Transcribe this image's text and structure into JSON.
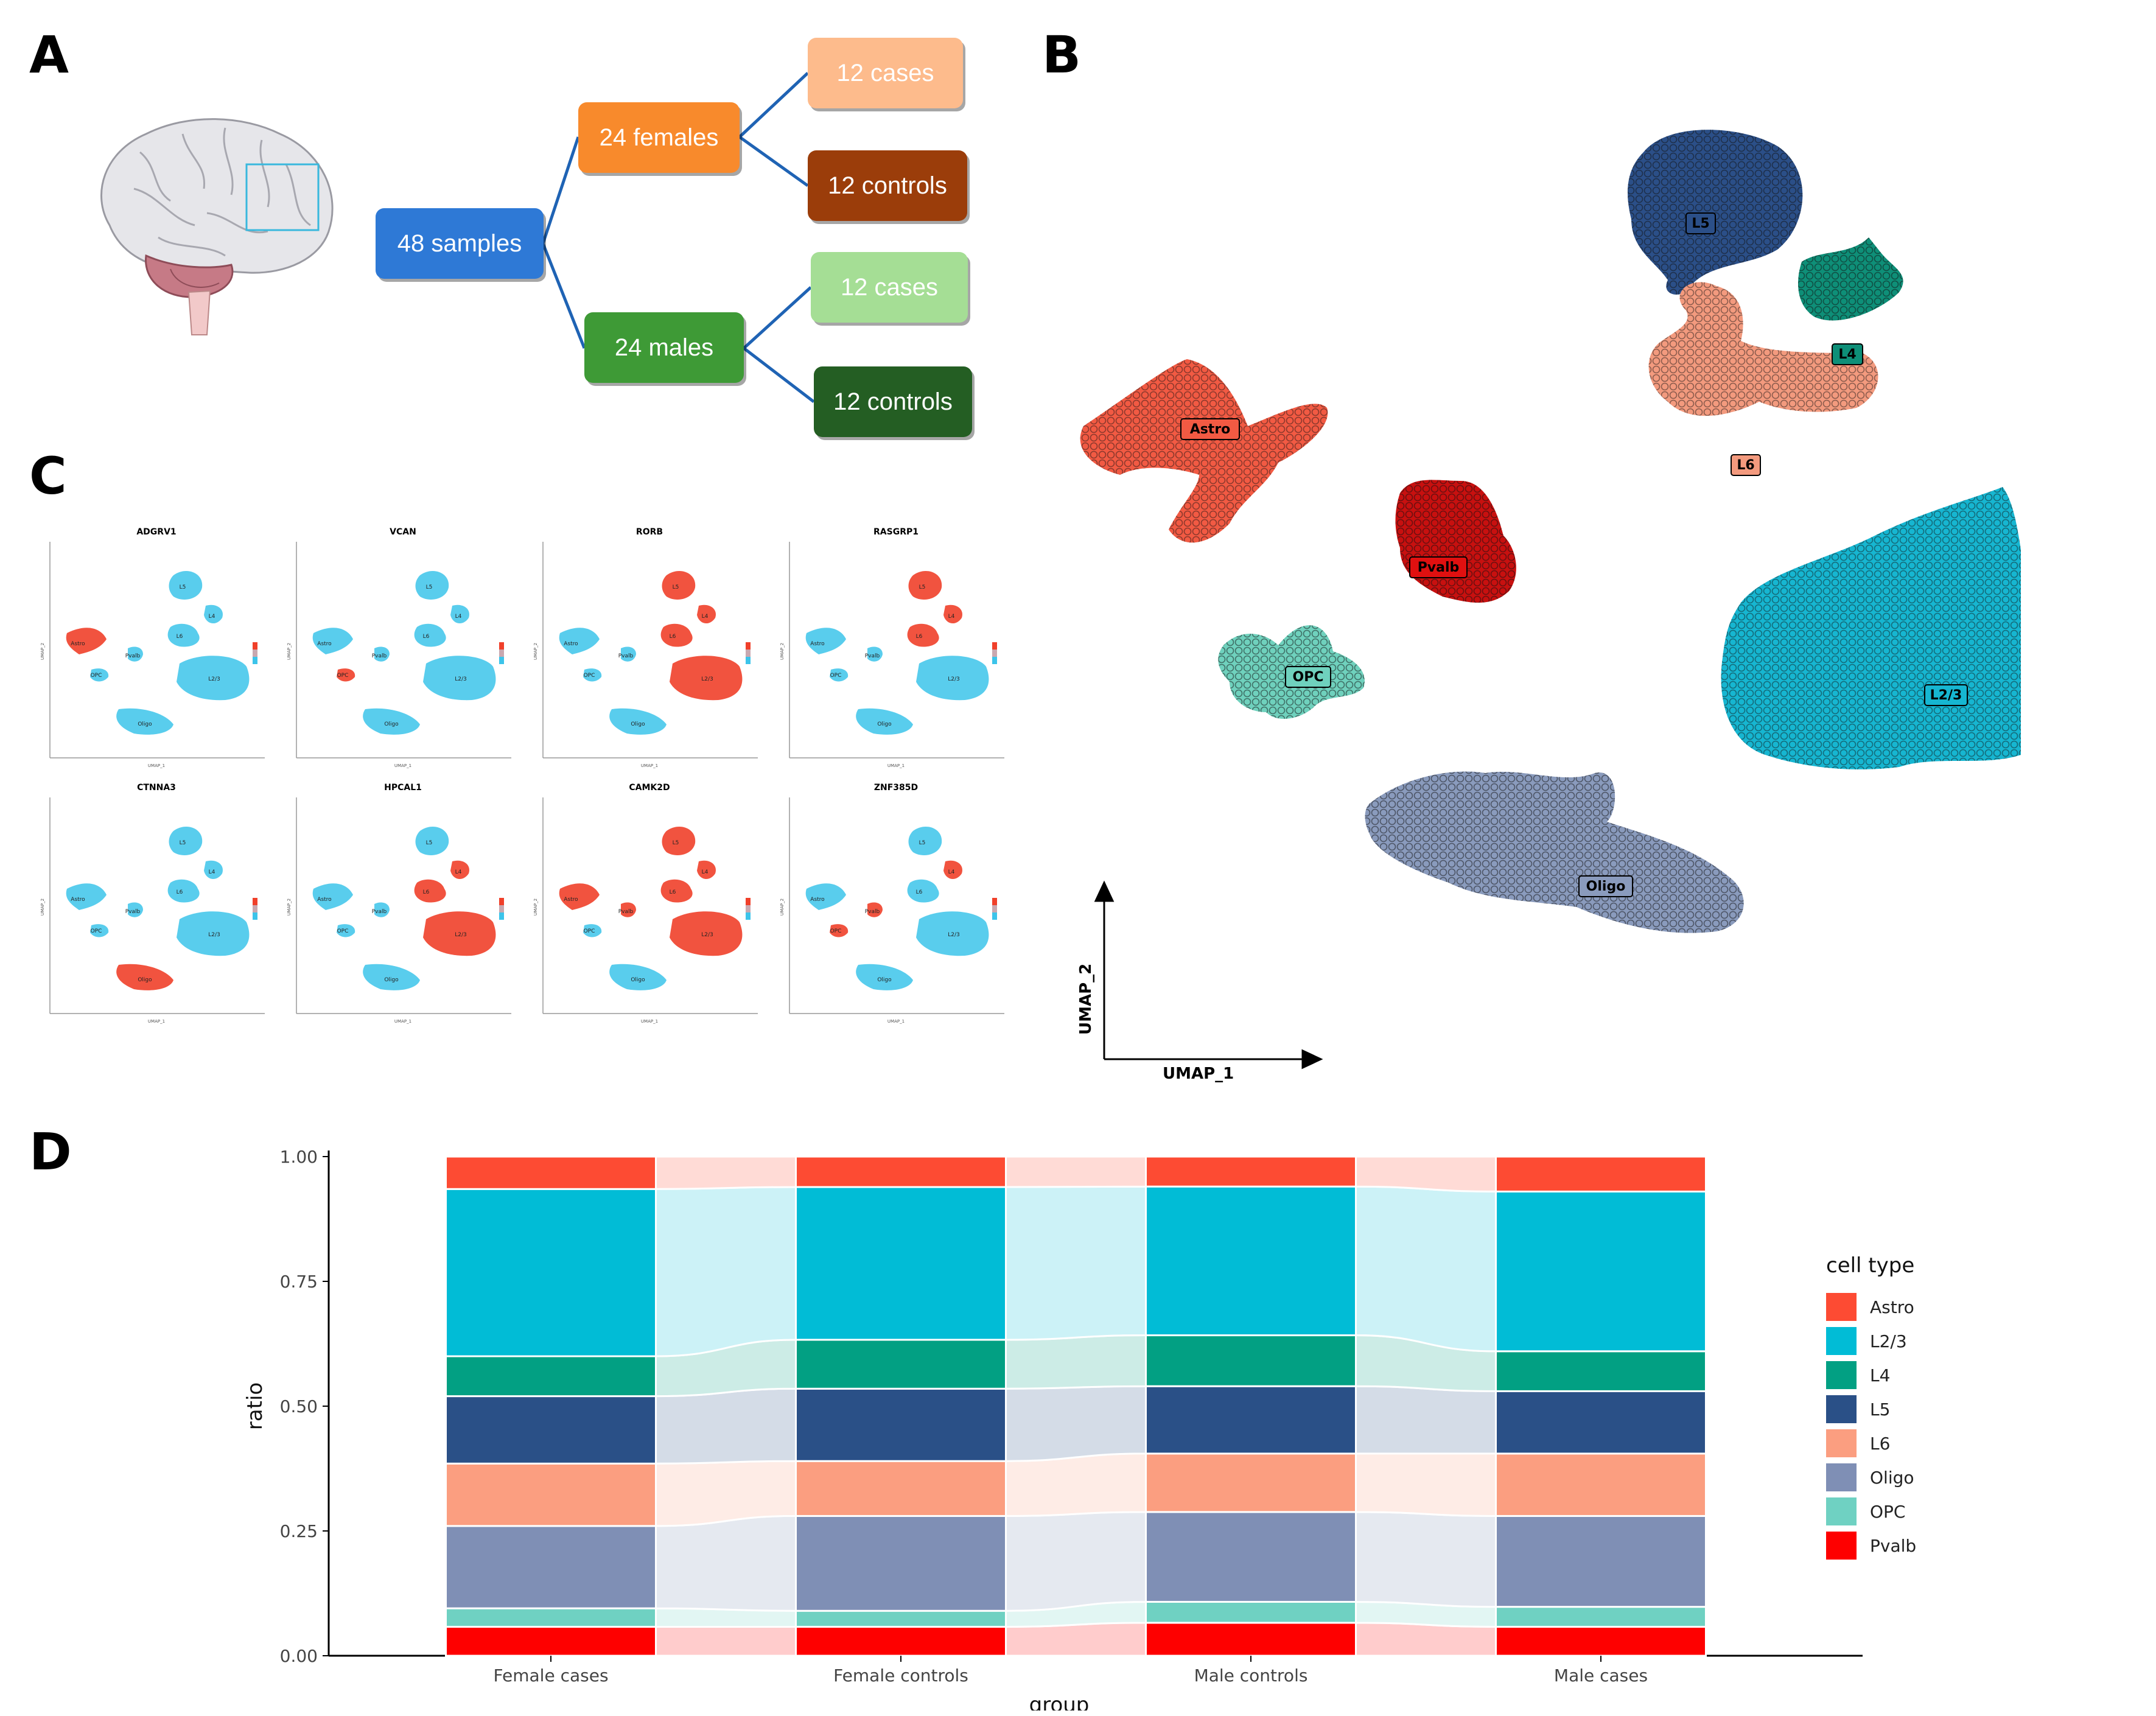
{
  "panels": {
    "a": "A",
    "b": "B",
    "c": "C",
    "d": "D"
  },
  "design": {
    "root": "48 samples",
    "females": "24 females",
    "males": "24 males",
    "female_cases": "12 cases",
    "female_controls": "12 controls",
    "male_cases": "12 cases",
    "male_controls": "12 controls",
    "colors": {
      "root": "#2e79d6",
      "females": "#f88a2c",
      "fcases": "#fdbb8c",
      "fcontrols": "#9b3d0a",
      "males": "#3e9a36",
      "mcases": "#a5de95",
      "mcontrols": "#245e23"
    }
  },
  "umap": {
    "clusters": [
      {
        "label": "L5",
        "color": "#2b4f88"
      },
      {
        "label": "L4",
        "color": "#0e8f78"
      },
      {
        "label": "L6",
        "color": "#f39a7e"
      },
      {
        "label": "Astro",
        "color": "#f25a43"
      },
      {
        "label": "Pvalb",
        "color": "#e01010"
      },
      {
        "label": "OPC",
        "color": "#6fd1bd"
      },
      {
        "label": "L2/3",
        "color": "#16b6d1"
      },
      {
        "label": "Oligo",
        "color": "#8a9bbd"
      }
    ],
    "x_axis": "UMAP_1",
    "y_axis": "UMAP_2"
  },
  "feature_plots": {
    "genes": [
      "ADGRV1",
      "VCAN",
      "RORB",
      "RASGRP1",
      "CTNNA3",
      "HPCAL1",
      "CAMK2D",
      "ZNF385D"
    ],
    "cluster_labels": [
      "L5",
      "L4",
      "Astro",
      "L6",
      "Pvalb",
      "OPC",
      "L2/3",
      "Oligo"
    ],
    "xlabel": "UMAP_1",
    "ylabel": "UMAP_2"
  },
  "chart_data": {
    "type": "bar",
    "stacked": true,
    "categories": [
      "Female cases",
      "Female controls",
      "Male controls",
      "Male cases"
    ],
    "xlabel": "group",
    "ylabel": "ratio",
    "ylim": [
      0,
      1
    ],
    "yticks": [
      "0.00",
      "0.25",
      "0.50",
      "0.75",
      "1.00"
    ],
    "legend_title": "cell type",
    "series": [
      {
        "name": "Pvalb",
        "color": "#fe0000",
        "values": [
          0.058,
          0.058,
          0.066,
          0.058
        ]
      },
      {
        "name": "OPC",
        "color": "#6fd1c2",
        "values": [
          0.037,
          0.032,
          0.042,
          0.04
        ]
      },
      {
        "name": "Oligo",
        "color": "#7f8fb5",
        "values": [
          0.165,
          0.19,
          0.18,
          0.182
        ]
      },
      {
        "name": "L6",
        "color": "#fb9e80",
        "values": [
          0.125,
          0.11,
          0.117,
          0.125
        ]
      },
      {
        "name": "L5",
        "color": "#2a5087",
        "values": [
          0.135,
          0.145,
          0.135,
          0.125
        ]
      },
      {
        "name": "L4",
        "color": "#02a083",
        "values": [
          0.08,
          0.098,
          0.102,
          0.08
        ]
      },
      {
        "name": "L2/3",
        "color": "#01bcd6",
        "values": [
          0.335,
          0.306,
          0.298,
          0.32
        ]
      },
      {
        "name": "Astro",
        "color": "#fd4b33",
        "values": [
          0.065,
          0.061,
          0.06,
          0.07
        ]
      }
    ],
    "legend_order": [
      "Astro",
      "L2/3",
      "L4",
      "L5",
      "L6",
      "Oligo",
      "OPC",
      "Pvalb"
    ]
  }
}
